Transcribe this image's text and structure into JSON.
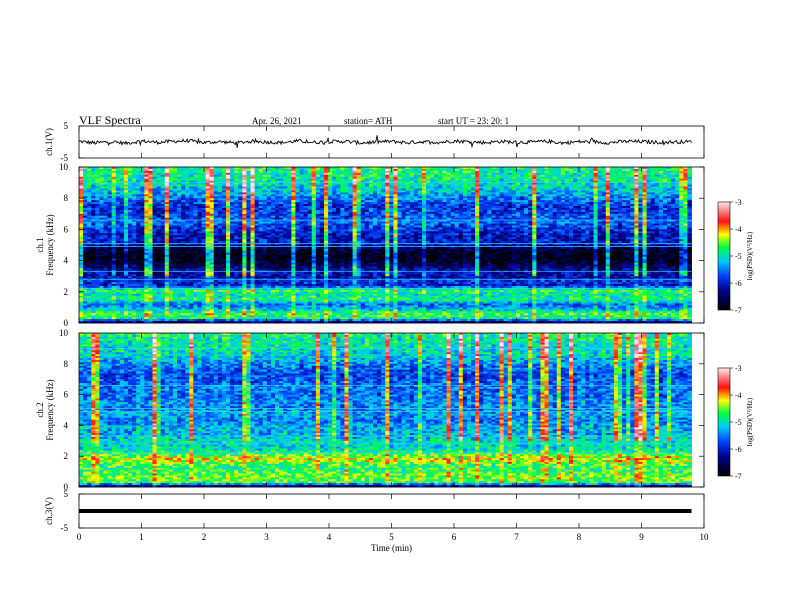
{
  "header": {
    "title": "VLF  Spectra",
    "date": "Apr. 26, 2021",
    "station": "station= ATH",
    "start": "start  UT  =    23: 20: 1"
  },
  "chart_data": [
    {
      "type": "line",
      "name": "ch1-waveform",
      "ylabel": "ch.1(V)",
      "ylim": [
        -5,
        5
      ],
      "yticks": [
        "5",
        "-5"
      ],
      "xlim": [
        0,
        10
      ],
      "x": [
        0.0,
        0.25,
        0.5,
        0.75,
        1.0,
        1.25,
        1.5,
        1.75,
        2.0,
        2.25,
        2.5,
        2.75,
        3.0,
        3.25,
        3.5,
        3.75,
        4.0,
        4.25,
        4.5,
        4.75,
        5.0,
        5.25,
        5.5,
        5.75,
        6.0,
        6.25,
        6.5,
        6.75,
        7.0,
        7.25,
        7.5,
        7.75,
        8.0,
        8.25,
        8.5,
        8.75,
        9.0,
        9.25,
        9.5,
        9.8
      ],
      "y": [
        0.2,
        -0.3,
        0.1,
        -0.4,
        0.3,
        -0.1,
        0.2,
        0.4,
        -0.2,
        0.1,
        -0.3,
        0.2,
        0.0,
        -0.2,
        0.3,
        -0.1,
        0.1,
        0.2,
        -0.3,
        0.0,
        0.2,
        -0.2,
        0.1,
        -0.1,
        0.3,
        0.1,
        -0.2,
        0.2,
        -0.1,
        0.0,
        0.2,
        -0.3,
        0.1,
        0.0,
        -0.2,
        0.2,
        0.1,
        -0.1,
        0.0,
        0.1
      ]
    },
    {
      "type": "heatmap",
      "name": "ch1-spectrogram",
      "ylabel": "ch.1\nFrequency  (kHz)",
      "ylim": [
        0,
        10
      ],
      "yticks": [
        "0",
        "2",
        "4",
        "6",
        "8",
        "10"
      ],
      "xlim": [
        0,
        9.8
      ],
      "colorbar": {
        "label": "log(PSD)(V²/Hz)",
        "min": -7,
        "max": -3,
        "ticks": [
          "-3",
          "-4",
          "-5",
          "-6",
          "-7"
        ]
      },
      "mean_profile": [
        [
          0.0,
          -6.8
        ],
        [
          0.3,
          -4.9
        ],
        [
          0.6,
          -4.6
        ],
        [
          0.9,
          -5.3
        ],
        [
          1.2,
          -5.6
        ],
        [
          1.5,
          -4.8
        ],
        [
          1.8,
          -5.0
        ],
        [
          2.1,
          -4.7
        ],
        [
          2.4,
          -6.0
        ],
        [
          2.7,
          -5.9
        ],
        [
          3.0,
          -6.2
        ],
        [
          3.3,
          -6.1
        ],
        [
          3.6,
          -6.5
        ],
        [
          3.9,
          -6.8
        ],
        [
          4.2,
          -6.9
        ],
        [
          4.5,
          -6.9
        ],
        [
          4.8,
          -6.6
        ],
        [
          5.1,
          -6.0
        ],
        [
          5.5,
          -6.1
        ],
        [
          6.0,
          -5.9
        ],
        [
          6.5,
          -5.6
        ],
        [
          7.0,
          -5.8
        ],
        [
          7.5,
          -5.9
        ],
        [
          8.0,
          -5.5
        ],
        [
          8.5,
          -5.2
        ],
        [
          9.0,
          -5.0
        ],
        [
          9.5,
          -4.9
        ],
        [
          10.0,
          -4.8
        ]
      ]
    },
    {
      "type": "heatmap",
      "name": "ch2-spectrogram",
      "ylabel": "ch.2\nFrequency  (kHz)",
      "ylim": [
        0,
        10
      ],
      "yticks": [
        "0",
        "2",
        "4",
        "6",
        "8",
        "10"
      ],
      "xlim": [
        0,
        9.8
      ],
      "colorbar": {
        "label": "log(PSD)(V²/Hz)",
        "min": -7,
        "max": -3,
        "ticks": [
          "-3",
          "-4",
          "-5",
          "-6",
          "-7"
        ]
      },
      "mean_profile": [
        [
          0.0,
          -6.8
        ],
        [
          0.3,
          -4.7
        ],
        [
          0.6,
          -4.5
        ],
        [
          0.9,
          -4.6
        ],
        [
          1.2,
          -4.8
        ],
        [
          1.5,
          -4.6
        ],
        [
          1.8,
          -4.2
        ],
        [
          2.1,
          -4.6
        ],
        [
          2.4,
          -5.0
        ],
        [
          2.7,
          -5.1
        ],
        [
          3.0,
          -5.0
        ],
        [
          3.3,
          -5.2
        ],
        [
          3.6,
          -5.3
        ],
        [
          3.9,
          -5.2
        ],
        [
          4.2,
          -5.5
        ],
        [
          4.5,
          -5.4
        ],
        [
          4.8,
          -5.3
        ],
        [
          5.1,
          -5.5
        ],
        [
          5.5,
          -5.4
        ],
        [
          6.0,
          -5.6
        ],
        [
          6.5,
          -5.5
        ],
        [
          7.0,
          -5.7
        ],
        [
          7.5,
          -5.7
        ],
        [
          8.0,
          -5.4
        ],
        [
          8.5,
          -5.1
        ],
        [
          9.0,
          -5.0
        ],
        [
          9.5,
          -4.9
        ],
        [
          10.0,
          -4.8
        ]
      ]
    },
    {
      "type": "line",
      "name": "ch3-waveform",
      "ylabel": "ch.3(V)",
      "ylim": [
        -5,
        5
      ],
      "yticks": [
        "5",
        "-5"
      ],
      "xlim": [
        0,
        10
      ],
      "x": [
        0.0,
        9.8
      ],
      "y": [
        0.0,
        0.0
      ],
      "xlabel": "Time  (min)",
      "xticks": [
        "0",
        "1",
        "2",
        "3",
        "4",
        "5",
        "6",
        "7",
        "8",
        "9",
        "10"
      ]
    }
  ]
}
